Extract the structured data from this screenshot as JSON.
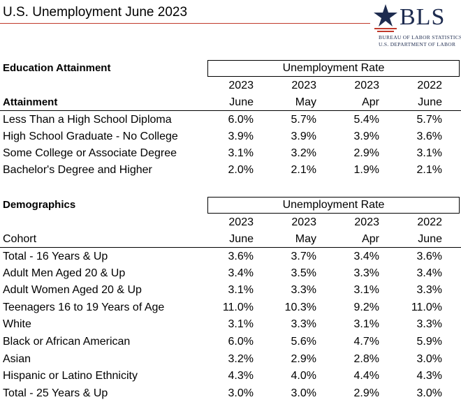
{
  "title": "U.S. Unemployment June 2023",
  "logo": {
    "name": "BLS",
    "line1": "BUREAU OF LABOR STATISTICS",
    "line2": "U.S. DEPARTMENT OF LABOR",
    "colors": {
      "navy": "#1d2b4f",
      "red": "#c0392b"
    }
  },
  "education": {
    "section_title": "Education Attainment",
    "group_header": "Unemployment Rate",
    "row_header": "Attainment",
    "columns": [
      {
        "year": "2023",
        "month": "June"
      },
      {
        "year": "2023",
        "month": "May"
      },
      {
        "year": "2023",
        "month": "Apr"
      },
      {
        "year": "2022",
        "month": "June"
      }
    ],
    "rows": [
      {
        "label": "Less Than a High School Diploma",
        "values": [
          "6.0%",
          "5.7%",
          "5.4%",
          "5.7%"
        ]
      },
      {
        "label": "High School Graduate - No College",
        "values": [
          "3.9%",
          "3.9%",
          "3.9%",
          "3.6%"
        ]
      },
      {
        "label": "Some College or Associate Degree",
        "values": [
          "3.1%",
          "3.2%",
          "2.9%",
          "3.1%"
        ]
      },
      {
        "label": "Bachelor's Degree and Higher",
        "values": [
          "2.0%",
          "2.1%",
          "1.9%",
          "2.1%"
        ]
      }
    ]
  },
  "demographics": {
    "section_title": "Demographics",
    "group_header": "Unemployment Rate",
    "row_header": "Cohort",
    "columns": [
      {
        "year": "2023",
        "month": "June"
      },
      {
        "year": "2023",
        "month": "May"
      },
      {
        "year": "2023",
        "month": "Apr"
      },
      {
        "year": "2022",
        "month": "June"
      }
    ],
    "rows": [
      {
        "label": "Total - 16 Years & Up",
        "values": [
          "3.6%",
          "3.7%",
          "3.4%",
          "3.6%"
        ]
      },
      {
        "label": "Adult Men Aged 20 & Up",
        "values": [
          "3.4%",
          "3.5%",
          "3.3%",
          "3.4%"
        ]
      },
      {
        "label": "Adult Women Aged 20 & Up",
        "values": [
          "3.1%",
          "3.3%",
          "3.1%",
          "3.3%"
        ]
      },
      {
        "label": "Teenagers 16 to 19 Years of Age",
        "values": [
          "11.0%",
          "10.3%",
          "9.2%",
          "11.0%"
        ]
      },
      {
        "label": "White",
        "values": [
          "3.1%",
          "3.3%",
          "3.1%",
          "3.3%"
        ]
      },
      {
        "label": "Black or African American",
        "values": [
          "6.0%",
          "5.6%",
          "4.7%",
          "5.9%"
        ]
      },
      {
        "label": "Asian",
        "values": [
          "3.2%",
          "2.9%",
          "2.8%",
          "3.0%"
        ]
      },
      {
        "label": "Hispanic or Latino Ethnicity",
        "values": [
          "4.3%",
          "4.0%",
          "4.4%",
          "4.3%"
        ]
      },
      {
        "label": "Total - 25 Years & Up",
        "values": [
          "3.0%",
          "3.0%",
          "2.9%",
          "3.0%"
        ]
      }
    ]
  }
}
